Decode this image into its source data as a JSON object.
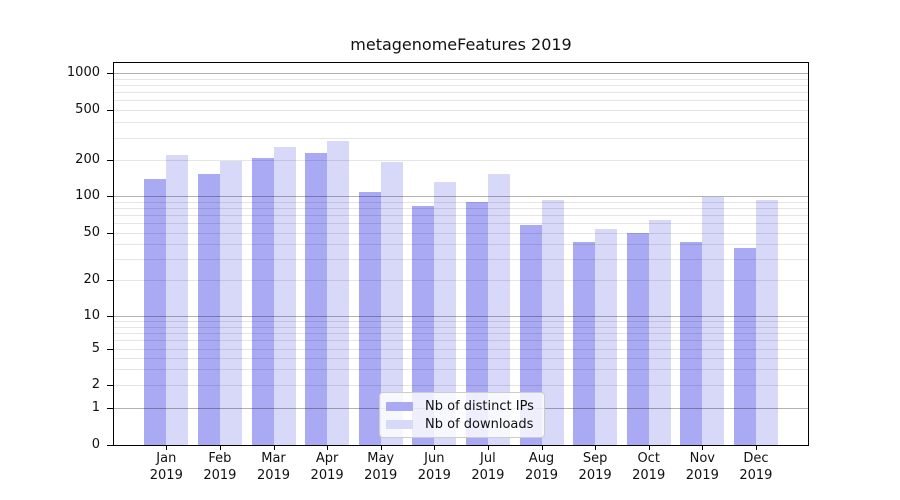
{
  "chart_data": {
    "type": "bar",
    "title": "metagenomeFeatures 2019",
    "categories": [
      "Jan 2019",
      "Feb 2019",
      "Mar 2019",
      "Apr 2019",
      "May 2019",
      "Jun 2019",
      "Jul 2019",
      "Aug 2019",
      "Sep 2019",
      "Oct 2019",
      "Nov 2019",
      "Dec 2019"
    ],
    "series": [
      {
        "name": "Nb of distinct IPs",
        "color": "#a9a9f4",
        "values": [
          140,
          152,
          206,
          226,
          108,
          83,
          90,
          58,
          42,
          50,
          42,
          37
        ]
      },
      {
        "name": "Nb of downloads",
        "color": "#d8d8f8",
        "values": [
          220,
          197,
          255,
          285,
          191,
          130,
          154,
          93,
          54,
          63,
          98,
          93
        ]
      }
    ],
    "y_axis": {
      "scale": "symlog",
      "tick_labels": [
        "0",
        "1",
        "2",
        "5",
        "10",
        "20",
        "50",
        "100",
        "200",
        "500",
        "1000"
      ],
      "ylim": [
        0,
        1000
      ]
    },
    "x_axis": {
      "label_line_2": "2019"
    },
    "legend": {
      "position": "lower center"
    },
    "grid": "on",
    "colors": {
      "frame": "#000000",
      "background": "#ffffff"
    }
  }
}
